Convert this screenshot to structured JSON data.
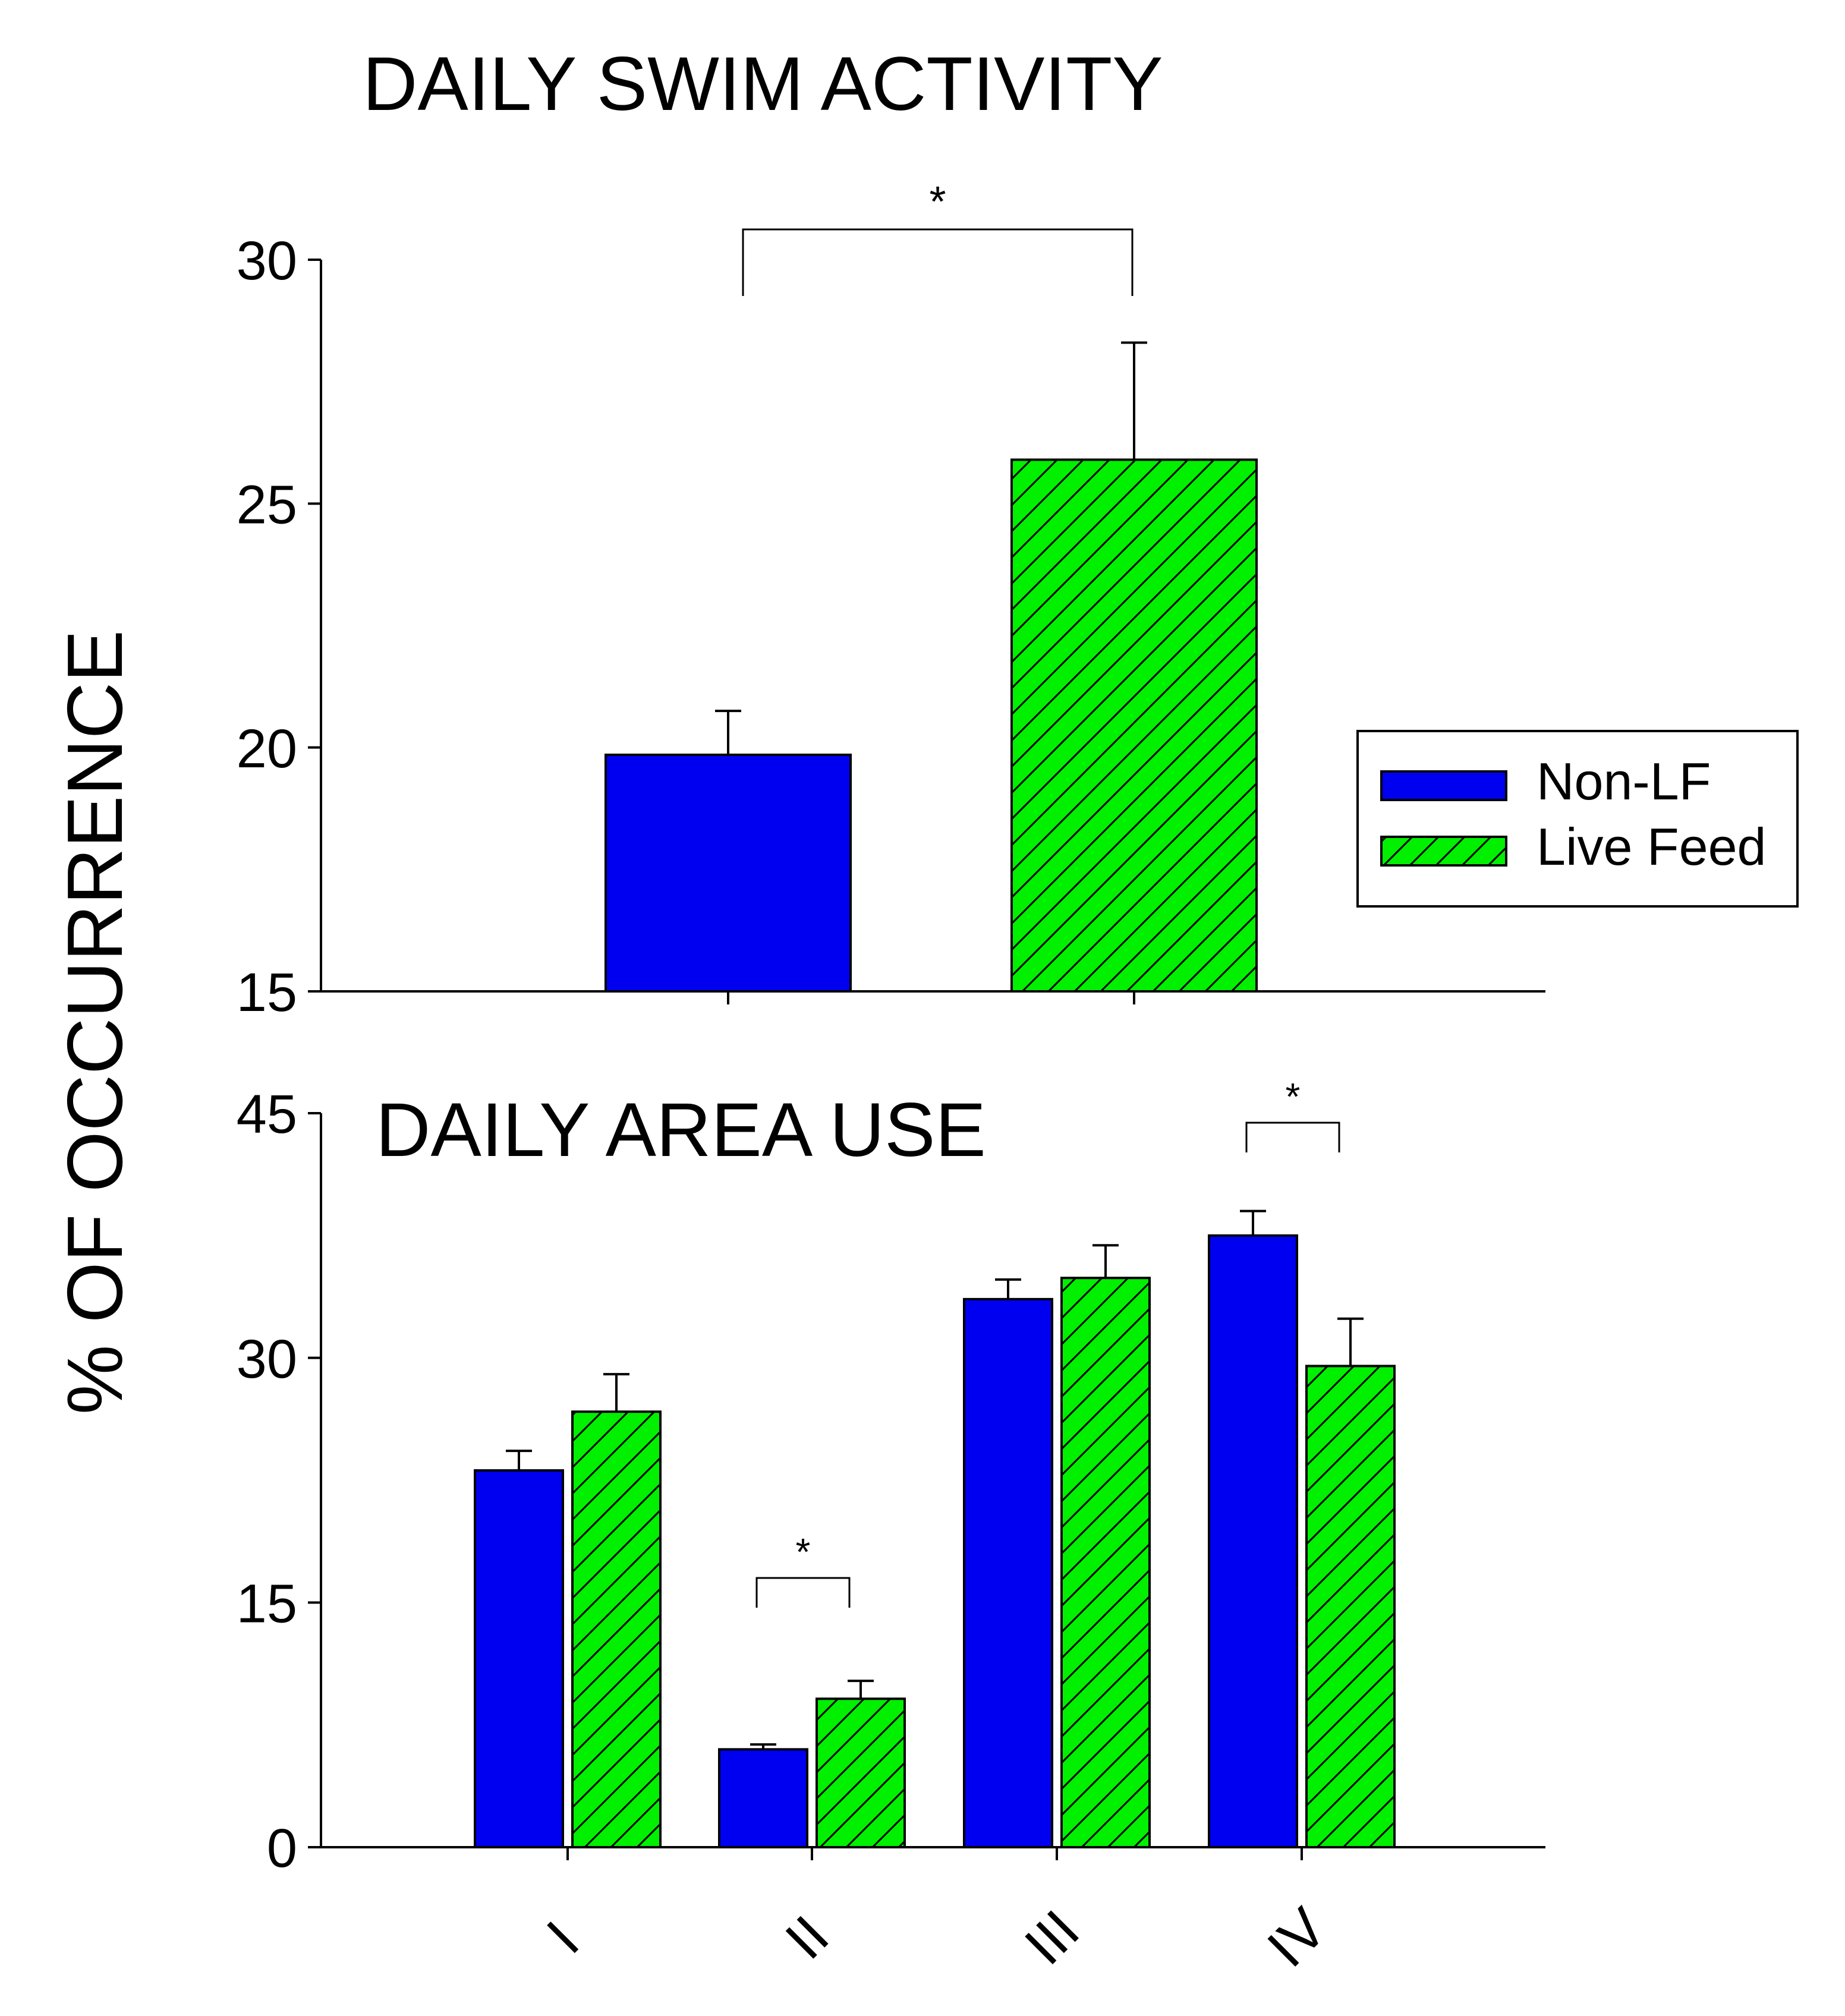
{
  "y_axis_label": "% OF OCCURRENCE",
  "significance_marker": "*",
  "legend": {
    "items": [
      {
        "label": "Non-LF",
        "color": "#0000f0",
        "pattern": "solid"
      },
      {
        "label": "Live Feed",
        "color": "#00f000",
        "pattern": "hatch"
      }
    ]
  },
  "colors": {
    "non_lf": "#0000f0",
    "live_feed": "#00f000",
    "axis": "#000000"
  },
  "chart_data": [
    {
      "type": "bar",
      "title": "DAILY SWIM ACTIVITY",
      "ylabel": "% OF OCCURRENCE",
      "ylim": [
        15,
        30
      ],
      "yticks": [
        15,
        20,
        25,
        30
      ],
      "ytick_labels": [
        "15",
        "20",
        "25",
        "30"
      ],
      "series": [
        {
          "name": "Non-LF",
          "values": [
            19.85
          ],
          "error": [
            0.9
          ]
        },
        {
          "name": "Live Feed",
          "values": [
            25.9
          ],
          "error": [
            2.4
          ]
        }
      ],
      "significance": [
        {
          "from": 0,
          "to": 1,
          "label": "*"
        }
      ]
    },
    {
      "type": "bar",
      "title": "DAILY AREA USE",
      "ylabel": "% OF OCCURRENCE",
      "ylim": [
        0,
        45
      ],
      "yticks": [
        0,
        15,
        30,
        45
      ],
      "ytick_labels": [
        "0",
        "15",
        "30",
        "45"
      ],
      "categories": [
        "I",
        "II",
        "III",
        "IV"
      ],
      "series": [
        {
          "name": "Non-LF",
          "values": [
            23.1,
            6.0,
            33.6,
            37.5
          ],
          "error": [
            1.2,
            0.3,
            1.2,
            1.5
          ]
        },
        {
          "name": "Live Feed",
          "values": [
            26.7,
            9.1,
            34.9,
            29.5
          ],
          "error": [
            2.3,
            1.1,
            2.0,
            2.9
          ]
        }
      ],
      "significance": [
        {
          "category": 1,
          "label": "*"
        },
        {
          "category": 3,
          "label": "*"
        }
      ]
    }
  ]
}
